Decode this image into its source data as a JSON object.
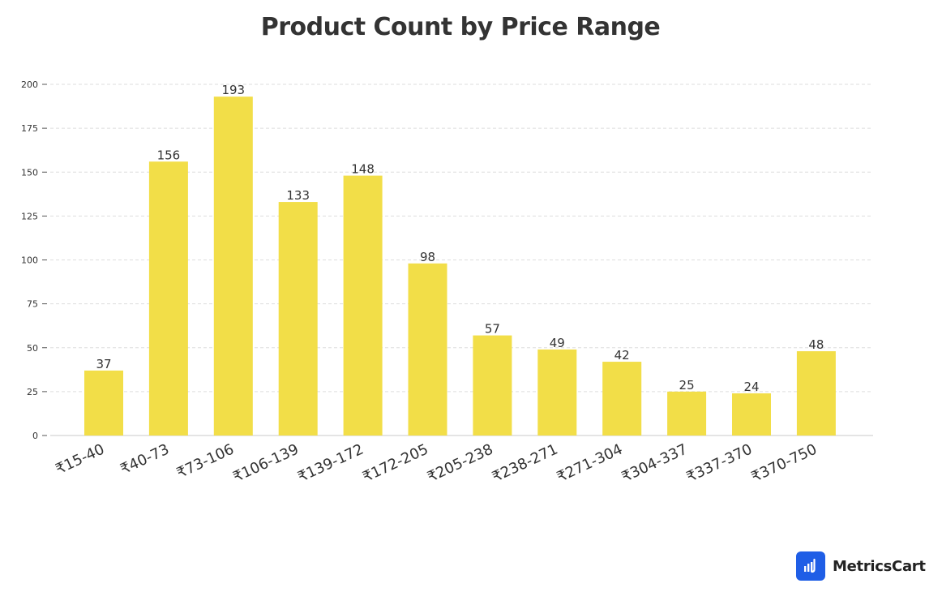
{
  "chart_data": {
    "type": "bar",
    "title": "Product Count by Price Range",
    "xlabel": "",
    "ylabel": "",
    "categories": [
      "₹15-40",
      "₹40-73",
      "₹73-106",
      "₹106-139",
      "₹139-172",
      "₹172-205",
      "₹205-238",
      "₹238-271",
      "₹271-304",
      "₹304-337",
      "₹337-370",
      "₹370-750"
    ],
    "values": [
      37,
      156,
      193,
      133,
      148,
      98,
      57,
      49,
      42,
      25,
      24,
      48
    ],
    "ylim": [
      0,
      200
    ],
    "yticks": [
      0,
      25,
      50,
      75,
      100,
      125,
      150,
      175,
      200
    ],
    "grid": true,
    "legend": "none",
    "bar_color": "#f2de48"
  },
  "brand": {
    "name": "MetricsCart",
    "logo_color": "#1f5ee6"
  }
}
